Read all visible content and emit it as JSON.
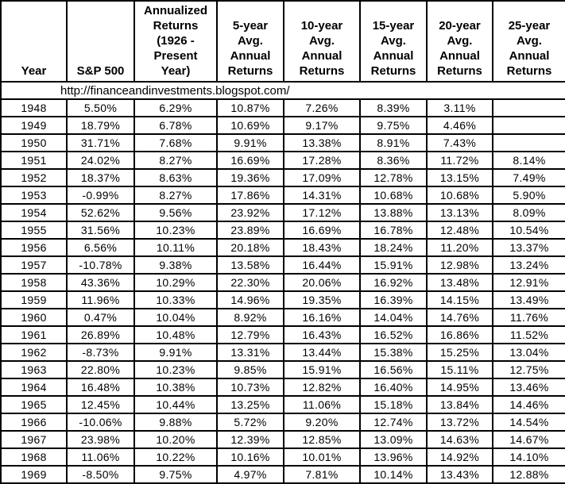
{
  "source_url": "http://financeandinvestments.blogspot.com/",
  "colors": {
    "background": "#ffffff",
    "text": "#000000",
    "border": "#000000"
  },
  "chart_data": {
    "type": "table",
    "columns": [
      {
        "id": "year",
        "label": "Year",
        "display": "Year"
      },
      {
        "id": "sp500",
        "label": "S&P 500",
        "display": "S&P 500"
      },
      {
        "id": "annualized",
        "label": "Annualized Returns (1926 - Present Year)",
        "display": "Annualized\nReturns\n(1926 -\nPresent\nYear)"
      },
      {
        "id": "avg5",
        "label": "5-year Avg. Annual Returns",
        "display": "5-year\nAvg.\nAnnual\nReturns"
      },
      {
        "id": "avg10",
        "label": "10-year Avg. Annual Returns",
        "display": "10-year\nAvg.\nAnnual\nReturns"
      },
      {
        "id": "avg15",
        "label": "15-year Avg. Annual Returns",
        "display": "15-year\nAvg.\nAnnual\nReturns"
      },
      {
        "id": "avg20",
        "label": "20-year Avg. Annual Returns",
        "display": "20-year\nAvg.\nAnnual\nReturns"
      },
      {
        "id": "avg25",
        "label": "25-year Avg. Annual Returns",
        "display": "25-year\nAvg.\nAnnual\nReturns"
      }
    ],
    "rows": [
      [
        "1948",
        "5.50%",
        "6.29%",
        "10.87%",
        "7.26%",
        "8.39%",
        "3.11%",
        ""
      ],
      [
        "1949",
        "18.79%",
        "6.78%",
        "10.69%",
        "9.17%",
        "9.75%",
        "4.46%",
        ""
      ],
      [
        "1950",
        "31.71%",
        "7.68%",
        "9.91%",
        "13.38%",
        "8.91%",
        "7.43%",
        ""
      ],
      [
        "1951",
        "24.02%",
        "8.27%",
        "16.69%",
        "17.28%",
        "8.36%",
        "11.72%",
        "8.14%"
      ],
      [
        "1952",
        "18.37%",
        "8.63%",
        "19.36%",
        "17.09%",
        "12.78%",
        "13.15%",
        "7.49%"
      ],
      [
        "1953",
        "-0.99%",
        "8.27%",
        "17.86%",
        "14.31%",
        "10.68%",
        "10.68%",
        "5.90%"
      ],
      [
        "1954",
        "52.62%",
        "9.56%",
        "23.92%",
        "17.12%",
        "13.88%",
        "13.13%",
        "8.09%"
      ],
      [
        "1955",
        "31.56%",
        "10.23%",
        "23.89%",
        "16.69%",
        "16.78%",
        "12.48%",
        "10.54%"
      ],
      [
        "1956",
        "6.56%",
        "10.11%",
        "20.18%",
        "18.43%",
        "18.24%",
        "11.20%",
        "13.37%"
      ],
      [
        "1957",
        "-10.78%",
        "9.38%",
        "13.58%",
        "16.44%",
        "15.91%",
        "12.98%",
        "13.24%"
      ],
      [
        "1958",
        "43.36%",
        "10.29%",
        "22.30%",
        "20.06%",
        "16.92%",
        "13.48%",
        "12.91%"
      ],
      [
        "1959",
        "11.96%",
        "10.33%",
        "14.96%",
        "19.35%",
        "16.39%",
        "14.15%",
        "13.49%"
      ],
      [
        "1960",
        "0.47%",
        "10.04%",
        "8.92%",
        "16.16%",
        "14.04%",
        "14.76%",
        "11.76%"
      ],
      [
        "1961",
        "26.89%",
        "10.48%",
        "12.79%",
        "16.43%",
        "16.52%",
        "16.86%",
        "11.52%"
      ],
      [
        "1962",
        "-8.73%",
        "9.91%",
        "13.31%",
        "13.44%",
        "15.38%",
        "15.25%",
        "13.04%"
      ],
      [
        "1963",
        "22.80%",
        "10.23%",
        "9.85%",
        "15.91%",
        "16.56%",
        "15.11%",
        "12.75%"
      ],
      [
        "1964",
        "16.48%",
        "10.38%",
        "10.73%",
        "12.82%",
        "16.40%",
        "14.95%",
        "13.46%"
      ],
      [
        "1965",
        "12.45%",
        "10.44%",
        "13.25%",
        "11.06%",
        "15.18%",
        "13.84%",
        "14.46%"
      ],
      [
        "1966",
        "-10.06%",
        "9.88%",
        "5.72%",
        "9.20%",
        "12.74%",
        "13.72%",
        "14.54%"
      ],
      [
        "1967",
        "23.98%",
        "10.20%",
        "12.39%",
        "12.85%",
        "13.09%",
        "14.63%",
        "14.67%"
      ],
      [
        "1968",
        "11.06%",
        "10.22%",
        "10.16%",
        "10.01%",
        "13.96%",
        "14.92%",
        "14.10%"
      ],
      [
        "1969",
        "-8.50%",
        "9.75%",
        "4.97%",
        "7.81%",
        "10.14%",
        "13.43%",
        "12.88%"
      ]
    ]
  }
}
